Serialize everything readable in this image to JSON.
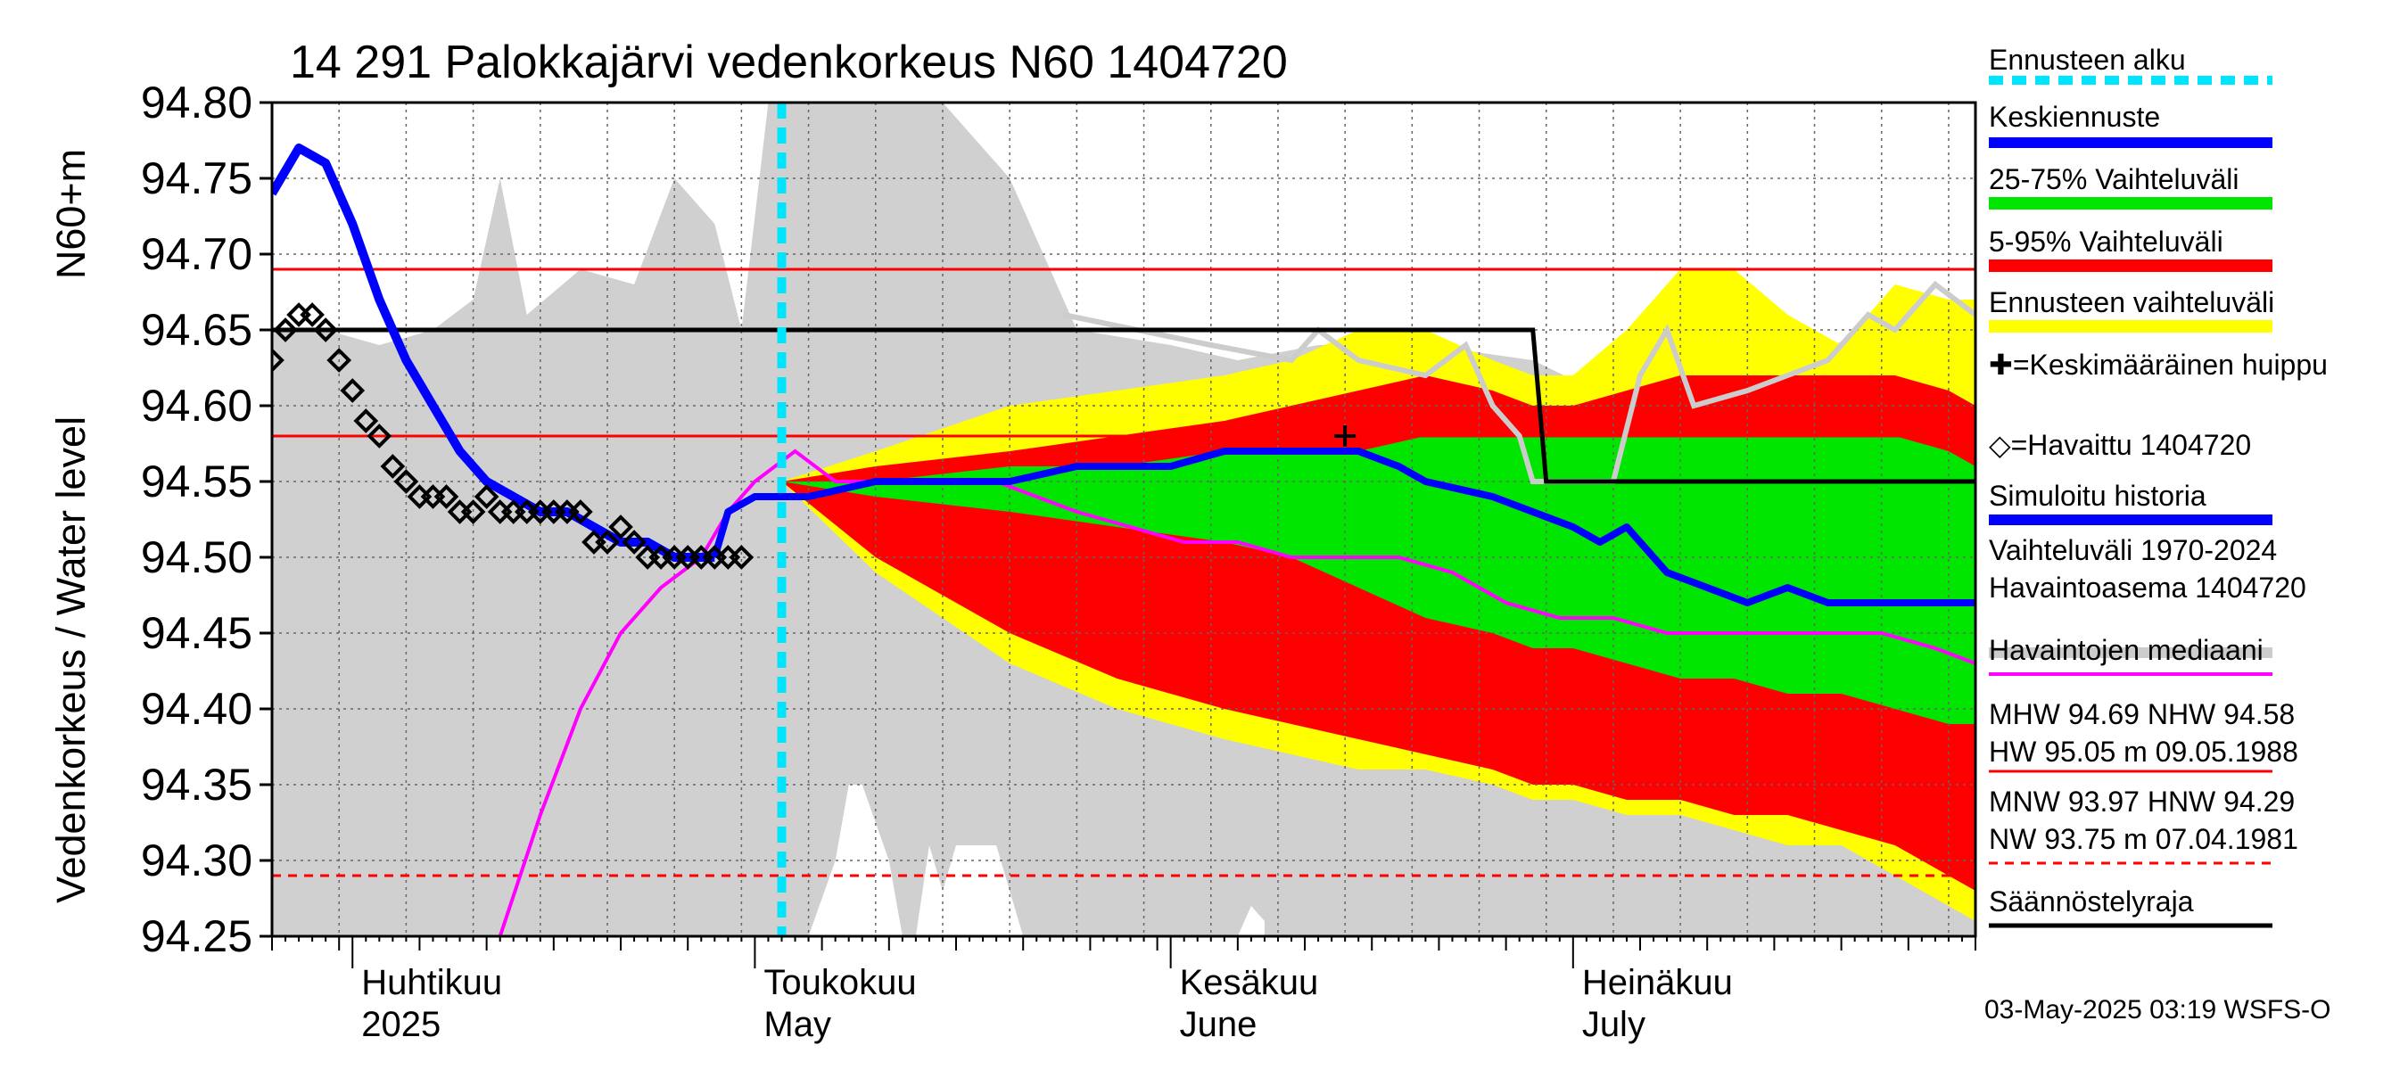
{
  "chart_data": {
    "type": "line",
    "title": "14 291 Palokkajärvi vedenkorkeus N60 1404720",
    "ylabel_fi": "Vedenkorkeus / Water level",
    "ylabel_unit": "N60+m",
    "ylim": [
      94.25,
      94.8
    ],
    "y_ticks": [
      "94.80",
      "94.75",
      "94.70",
      "94.65",
      "94.60",
      "94.55",
      "94.50",
      "94.45",
      "94.40",
      "94.35",
      "94.30",
      "94.25"
    ],
    "x_start": "2025-03-26",
    "x_end": "2025-07-31",
    "month_labels": [
      {
        "date": "2025-04-01",
        "fi": "Huhtikuu",
        "en": "2025"
      },
      {
        "date": "2025-05-01",
        "fi": "Toukokuu",
        "en": "May"
      },
      {
        "date": "2025-06-01",
        "fi": "Kesäkuu",
        "en": "June"
      },
      {
        "date": "2025-07-01",
        "fi": "Heinäkuu",
        "en": "July"
      }
    ],
    "forecast_start": "2025-05-03",
    "reference_lines": {
      "MHW": 94.69,
      "NHW": 94.58,
      "HNW": 94.29
    },
    "legend": [
      {
        "label": "Ennusteen alku",
        "color": "#00e5ff",
        "style": "dashed"
      },
      {
        "label": "Keskiennuste",
        "color": "#0000ff",
        "style": "line"
      },
      {
        "label": "25-75% Vaihteluväli",
        "color": "#00e600",
        "style": "line"
      },
      {
        "label": "5-95% Vaihteluväli",
        "color": "#ff0000",
        "style": "line"
      },
      {
        "label": "Ennusteen vaihteluväli",
        "color": "#ffff00",
        "style": "line"
      },
      {
        "label": "✚=Keskimääräinen huippu",
        "color": "#000000",
        "style": "text"
      },
      {
        "label": "◇=Havaittu 1404720",
        "color": "#000000",
        "style": "text"
      },
      {
        "label": "Simuloitu historia",
        "color": "#0000ff",
        "style": "line"
      },
      {
        "label": "Vaihteluväli 1970-2024\n Havaintoasema 1404720",
        "color": "#cccccc",
        "style": "line"
      },
      {
        "label": "Havaintojen mediaani",
        "color": "#ff00ff",
        "style": "line"
      },
      {
        "label": "MHW  94.69 NHW  94.58\nHW  95.05 m 09.05.1988",
        "color": "#ff0000",
        "style": "line"
      },
      {
        "label": "MNW  93.97 HNW  94.29\nNW  93.75 m 07.04.1981",
        "color": "#ff0000",
        "style": "dashed"
      },
      {
        "label": "Säännöstelyraja",
        "color": "#000000",
        "style": "line"
      }
    ],
    "footer": "03-May-2025 03:19 WSFS-O",
    "series": {
      "observed": {
        "x": [
          "2025-03-26",
          "2025-03-27",
          "2025-03-28",
          "2025-03-29",
          "2025-03-30",
          "2025-03-31",
          "2025-04-01",
          "2025-04-02",
          "2025-04-03",
          "2025-04-04",
          "2025-04-05",
          "2025-04-06",
          "2025-04-07",
          "2025-04-08",
          "2025-04-09",
          "2025-04-10",
          "2025-04-11",
          "2025-04-12",
          "2025-04-13",
          "2025-04-14",
          "2025-04-15",
          "2025-04-16",
          "2025-04-17",
          "2025-04-18",
          "2025-04-19",
          "2025-04-20",
          "2025-04-21",
          "2025-04-22",
          "2025-04-23",
          "2025-04-24",
          "2025-04-25",
          "2025-04-26",
          "2025-04-27",
          "2025-04-28",
          "2025-04-29",
          "2025-04-30"
        ],
        "y": [
          94.63,
          94.65,
          94.66,
          94.66,
          94.65,
          94.63,
          94.61,
          94.59,
          94.58,
          94.56,
          94.55,
          94.54,
          94.54,
          94.54,
          94.53,
          94.53,
          94.54,
          94.53,
          94.53,
          94.53,
          94.53,
          94.53,
          94.53,
          94.53,
          94.51,
          94.51,
          94.52,
          94.51,
          94.5,
          94.5,
          94.5,
          94.5,
          94.5,
          94.5,
          94.5,
          94.5
        ]
      },
      "simulated_history": {
        "x": [
          "2025-03-26",
          "2025-03-28",
          "2025-03-30",
          "2025-04-01",
          "2025-04-03",
          "2025-04-05",
          "2025-04-07",
          "2025-04-09",
          "2025-04-11",
          "2025-04-13",
          "2025-04-15",
          "2025-04-17",
          "2025-04-19",
          "2025-04-21",
          "2025-04-23",
          "2025-04-25",
          "2025-04-27",
          "2025-04-28"
        ],
        "y": [
          94.74,
          94.77,
          94.76,
          94.72,
          94.67,
          94.63,
          94.6,
          94.57,
          94.55,
          94.54,
          94.53,
          94.53,
          94.52,
          94.51,
          94.51,
          94.5,
          94.5,
          94.5
        ]
      },
      "median_forecast": {
        "x": [
          "2025-04-28",
          "2025-04-29",
          "2025-05-01",
          "2025-05-05",
          "2025-05-10",
          "2025-05-15",
          "2025-05-20",
          "2025-05-25",
          "2025-06-01",
          "2025-06-05",
          "2025-06-10",
          "2025-06-13",
          "2025-06-15",
          "2025-06-18",
          "2025-06-20",
          "2025-06-25",
          "2025-06-28",
          "2025-07-01",
          "2025-07-03",
          "2025-07-05",
          "2025-07-08",
          "2025-07-11",
          "2025-07-14",
          "2025-07-17",
          "2025-07-20",
          "2025-07-23",
          "2025-07-26",
          "2025-07-29",
          "2025-07-31"
        ],
        "y": [
          94.5,
          94.53,
          94.54,
          94.54,
          94.55,
          94.55,
          94.55,
          94.56,
          94.56,
          94.57,
          94.57,
          94.57,
          94.57,
          94.56,
          94.55,
          94.54,
          94.53,
          94.52,
          94.51,
          94.52,
          94.49,
          94.48,
          94.47,
          94.48,
          94.47,
          94.47,
          94.47,
          94.47,
          94.47
        ]
      },
      "median_observed": {
        "x": [
          "2025-04-12",
          "2025-04-15",
          "2025-04-18",
          "2025-04-21",
          "2025-04-24",
          "2025-04-27",
          "2025-04-29",
          "2025-05-01",
          "2025-05-04",
          "2025-05-07",
          "2025-05-10",
          "2025-05-13",
          "2025-05-16",
          "2025-05-19",
          "2025-05-22",
          "2025-05-25",
          "2025-05-29",
          "2025-06-02",
          "2025-06-06",
          "2025-06-10",
          "2025-06-14",
          "2025-06-18",
          "2025-06-22",
          "2025-06-26",
          "2025-06-30",
          "2025-07-04",
          "2025-07-08",
          "2025-07-12",
          "2025-07-16",
          "2025-07-20",
          "2025-07-24",
          "2025-07-28",
          "2025-07-31"
        ],
        "y": [
          94.25,
          94.33,
          94.4,
          94.45,
          94.48,
          94.5,
          94.53,
          94.55,
          94.57,
          94.55,
          94.55,
          94.55,
          94.55,
          94.55,
          94.54,
          94.53,
          94.52,
          94.51,
          94.51,
          94.5,
          94.5,
          94.5,
          94.49,
          94.47,
          94.46,
          94.46,
          94.45,
          94.45,
          94.45,
          94.45,
          94.45,
          94.44,
          94.43
        ]
      },
      "max_history": {
        "x": [
          "2025-05-24",
          "2025-06-04",
          "2025-06-10",
          "2025-06-12",
          "2025-06-15",
          "2025-06-20",
          "2025-06-23",
          "2025-06-25",
          "2025-06-27",
          "2025-06-28",
          "2025-06-29",
          "2025-07-04",
          "2025-07-06",
          "2025-07-08",
          "2025-07-10",
          "2025-07-14",
          "2025-07-17",
          "2025-07-20",
          "2025-07-23",
          "2025-07-25",
          "2025-07-28",
          "2025-07-31"
        ],
        "y": [
          94.66,
          94.64,
          94.63,
          94.65,
          94.63,
          94.62,
          94.64,
          94.6,
          94.58,
          94.55,
          94.55,
          94.55,
          94.62,
          94.65,
          94.6,
          94.61,
          94.62,
          94.63,
          94.66,
          94.65,
          94.68,
          94.66
        ]
      },
      "band_yellow": {
        "x": [
          "2025-05-03",
          "2025-05-10",
          "2025-05-20",
          "2025-05-28",
          "2025-06-05",
          "2025-06-10",
          "2025-06-15",
          "2025-06-20",
          "2025-06-25",
          "2025-06-28",
          "2025-07-01",
          "2025-07-05",
          "2025-07-09",
          "2025-07-13",
          "2025-07-17",
          "2025-07-21",
          "2025-07-25",
          "2025-07-29",
          "2025-07-31"
        ],
        "upper": [
          94.55,
          94.57,
          94.6,
          94.61,
          94.62,
          94.63,
          94.65,
          94.65,
          94.63,
          94.62,
          94.62,
          94.65,
          94.69,
          94.69,
          94.66,
          94.64,
          94.68,
          94.67,
          94.67
        ],
        "lower": [
          94.55,
          94.49,
          94.43,
          94.4,
          94.38,
          94.37,
          94.36,
          94.36,
          94.35,
          94.34,
          94.34,
          94.33,
          94.33,
          94.32,
          94.31,
          94.31,
          94.29,
          94.27,
          94.26
        ]
      },
      "band_red": {
        "x": [
          "2025-05-03",
          "2025-05-10",
          "2025-05-20",
          "2025-05-28",
          "2025-06-05",
          "2025-06-10",
          "2025-06-15",
          "2025-06-20",
          "2025-06-25",
          "2025-06-28",
          "2025-07-01",
          "2025-07-05",
          "2025-07-09",
          "2025-07-13",
          "2025-07-17",
          "2025-07-21",
          "2025-07-25",
          "2025-07-29",
          "2025-07-31"
        ],
        "upper": [
          94.55,
          94.56,
          94.57,
          94.58,
          94.59,
          94.6,
          94.61,
          94.62,
          94.61,
          94.6,
          94.6,
          94.61,
          94.62,
          94.62,
          94.62,
          94.62,
          94.62,
          94.61,
          94.6
        ],
        "lower": [
          94.55,
          94.5,
          94.45,
          94.42,
          94.4,
          94.39,
          94.38,
          94.37,
          94.36,
          94.35,
          94.35,
          94.34,
          94.34,
          94.33,
          94.33,
          94.32,
          94.31,
          94.29,
          94.28
        ]
      },
      "band_green": {
        "x": [
          "2025-05-03",
          "2025-05-10",
          "2025-05-20",
          "2025-05-28",
          "2025-06-05",
          "2025-06-10",
          "2025-06-15",
          "2025-06-20",
          "2025-06-25",
          "2025-06-28",
          "2025-07-01",
          "2025-07-05",
          "2025-07-09",
          "2025-07-13",
          "2025-07-17",
          "2025-07-21",
          "2025-07-25",
          "2025-07-29",
          "2025-07-31"
        ],
        "upper": [
          94.55,
          94.55,
          94.56,
          94.56,
          94.57,
          94.57,
          94.57,
          94.58,
          94.58,
          94.58,
          94.58,
          94.58,
          94.58,
          94.58,
          94.58,
          94.58,
          94.58,
          94.57,
          94.56
        ],
        "lower": [
          94.55,
          94.54,
          94.53,
          94.52,
          94.51,
          94.5,
          94.48,
          94.46,
          94.45,
          94.44,
          94.44,
          94.43,
          94.42,
          94.42,
          94.41,
          94.41,
          94.4,
          94.39,
          94.39
        ]
      },
      "history_range": {
        "x": [
          "2025-03-26",
          "2025-03-30",
          "2025-04-03",
          "2025-04-07",
          "2025-04-10",
          "2025-04-12",
          "2025-04-14",
          "2025-04-18",
          "2025-04-22",
          "2025-04-25",
          "2025-04-28",
          "2025-04-30",
          "2025-05-02",
          "2025-05-05",
          "2025-05-10",
          "2025-05-15",
          "2025-05-20",
          "2025-05-25",
          "2025-06-01",
          "2025-06-06",
          "2025-06-12",
          "2025-06-20",
          "2025-06-28",
          "2025-07-05",
          "2025-07-12",
          "2025-07-20",
          "2025-07-31"
        ],
        "upper": [
          94.65,
          94.65,
          94.64,
          94.65,
          94.67,
          94.75,
          94.66,
          94.69,
          94.68,
          94.75,
          94.72,
          94.65,
          94.8,
          94.8,
          94.8,
          94.8,
          94.75,
          94.65,
          94.64,
          94.63,
          94.64,
          94.64,
          94.63,
          94.6,
          94.62,
          94.64,
          94.66
        ],
        "lower": [
          94.25,
          94.25,
          94.25,
          94.25,
          94.25,
          94.25,
          94.25,
          94.25,
          94.25,
          94.25,
          94.25,
          94.25,
          94.25,
          94.25,
          94.25,
          94.25,
          94.25,
          94.25,
          94.25,
          94.25,
          94.25,
          94.25,
          94.25,
          94.25,
          94.25,
          94.25,
          94.25
        ]
      },
      "history_range_min": {
        "x": [
          "2025-05-05",
          "2025-05-07",
          "2025-05-08",
          "2025-05-09",
          "2025-05-11",
          "2025-05-12",
          "2025-05-13",
          "2025-05-14",
          "2025-05-15",
          "2025-05-16",
          "2025-05-18",
          "2025-05-19",
          "2025-05-21",
          "2025-05-22",
          "2025-06-06",
          "2025-06-07",
          "2025-06-08"
        ],
        "y": [
          94.25,
          94.3,
          94.35,
          94.35,
          94.3,
          94.25,
          94.25,
          94.31,
          94.28,
          94.31,
          94.31,
          94.31,
          94.25,
          94.25,
          94.25,
          94.27,
          94.26
        ]
      },
      "regulation_limit": {
        "x": [
          "2025-03-26",
          "2025-06-28",
          "2025-06-29",
          "2025-07-31"
        ],
        "y": [
          94.65,
          94.65,
          94.55,
          94.55
        ]
      },
      "avg_peak": {
        "x": "2025-06-14",
        "y": 94.58
      }
    }
  }
}
